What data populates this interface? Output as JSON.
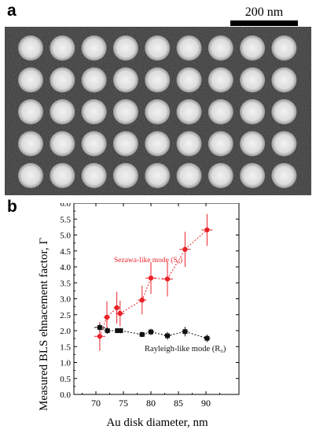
{
  "panels": {
    "a": "a",
    "b": "b"
  },
  "scale_bar": {
    "label": "200 nm"
  },
  "image": {
    "description_name": "sem-micrograph",
    "grid_rows": 5,
    "grid_cols": 9
  },
  "chart_data": {
    "type": "scatter",
    "title": "",
    "xlabel": "Au disk diameter, nm",
    "ylabel": "Measured BLS ehnacement factor, Γ",
    "xlim": [
      66,
      96
    ],
    "ylim": [
      0.0,
      6.0
    ],
    "x_ticks": [
      "70",
      "75",
      "80",
      "85",
      "90"
    ],
    "y_ticks": [
      "0.0",
      "0.5",
      "1.0",
      "1.5",
      "2.0",
      "2.5",
      "3.0",
      "3.5",
      "4.0",
      "4.5",
      "5.0",
      "5.5",
      "6.0"
    ],
    "series": [
      {
        "name": "Sezawa-like mode (S₀)",
        "color": "#e8232a",
        "marker": "circle",
        "points": [
          {
            "x": 70.7,
            "y": 1.82,
            "xerr": 1.0,
            "yerr": 0.45
          },
          {
            "x": 72.0,
            "y": 2.42,
            "xerr": 0.6,
            "yerr": 0.5
          },
          {
            "x": 73.8,
            "y": 2.72,
            "xerr": 0.6,
            "yerr": 0.5
          },
          {
            "x": 74.4,
            "y": 2.54,
            "xerr": 0.8,
            "yerr": 0.4
          },
          {
            "x": 78.4,
            "y": 2.96,
            "xerr": 0.8,
            "yerr": 0.45
          },
          {
            "x": 80.0,
            "y": 3.65,
            "xerr": 1.0,
            "yerr": 0.5
          },
          {
            "x": 83.0,
            "y": 3.62,
            "xerr": 1.0,
            "yerr": 0.55
          },
          {
            "x": 86.2,
            "y": 4.55,
            "xerr": 1.0,
            "yerr": 0.55
          },
          {
            "x": 90.2,
            "y": 5.16,
            "xerr": 1.0,
            "yerr": 0.5
          }
        ]
      },
      {
        "name": "Rayleigh-like mode (R₀)",
        "color": "#111111",
        "marker": "square",
        "points": [
          {
            "x": 70.7,
            "y": 2.1,
            "xerr": 1.0,
            "yerr": 0.12
          },
          {
            "x": 72.1,
            "y": 2.0,
            "xerr": 0.6,
            "yerr": 0.1
          },
          {
            "x": 73.9,
            "y": 2.0,
            "xerr": 0.4,
            "yerr": 0.08
          },
          {
            "x": 74.5,
            "y": 2.0,
            "xerr": 0.4,
            "yerr": 0.08
          },
          {
            "x": 78.4,
            "y": 1.88,
            "xerr": 0.6,
            "yerr": 0.08
          },
          {
            "x": 80.0,
            "y": 1.96,
            "xerr": 0.6,
            "yerr": 0.1
          },
          {
            "x": 83.0,
            "y": 1.84,
            "xerr": 0.6,
            "yerr": 0.12
          },
          {
            "x": 86.2,
            "y": 1.97,
            "xerr": 0.6,
            "yerr": 0.15
          },
          {
            "x": 90.2,
            "y": 1.76,
            "xerr": 0.6,
            "yerr": 0.12
          }
        ]
      }
    ],
    "annotations": [
      {
        "text": "Sezawa-like mode (S₀)",
        "series": 0
      },
      {
        "text": "Rayleigh-like mode (R₀)",
        "series": 1
      }
    ]
  }
}
